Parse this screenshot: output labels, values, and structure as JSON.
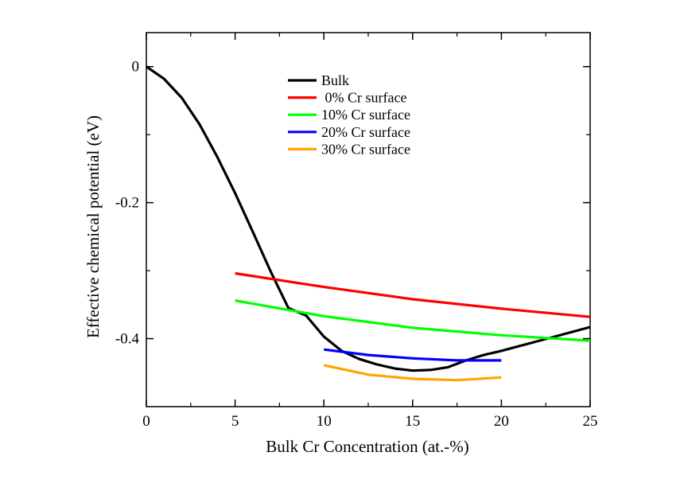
{
  "chart_data": {
    "type": "line",
    "title": "",
    "xlabel": "Bulk Cr Concentration (at.-%)",
    "ylabel": "Effective chemical potential (eV)",
    "xlim": [
      0,
      25
    ],
    "ylim": [
      -0.5,
      0.05
    ],
    "x_ticks": [
      0,
      5,
      10,
      15,
      20,
      25
    ],
    "x_tick_labels": [
      "0",
      "5",
      "10",
      "15",
      "20",
      "25"
    ],
    "y_ticks": [
      0,
      -0.2,
      -0.4
    ],
    "y_tick_labels": [
      "0",
      "-0.2",
      "-0.4"
    ],
    "grid": false,
    "legend_position": "top-center",
    "series": [
      {
        "name": "Bulk",
        "color": "#000000",
        "x": [
          0,
          1,
          2,
          3,
          4,
          5,
          6,
          7,
          8,
          9,
          10,
          11,
          12,
          13,
          14,
          15,
          16,
          17,
          18,
          19,
          20,
          21,
          22,
          23,
          24,
          25
        ],
        "y": [
          0,
          -0.018,
          -0.046,
          -0.085,
          -0.133,
          -0.186,
          -0.243,
          -0.301,
          -0.355,
          -0.366,
          -0.397,
          -0.418,
          -0.43,
          -0.438,
          -0.444,
          -0.447,
          -0.446,
          -0.442,
          -0.432,
          -0.424,
          -0.418,
          -0.411,
          -0.404,
          -0.397,
          -0.39,
          -0.383
        ]
      },
      {
        "name": " 0% Cr surface",
        "color": "#ff0000",
        "x": [
          5,
          10,
          15,
          20,
          25
        ],
        "y": [
          -0.304,
          -0.324,
          -0.342,
          -0.356,
          -0.368
        ]
      },
      {
        "name": "10% Cr surface",
        "color": "#00ff00",
        "x": [
          5,
          10,
          15,
          20,
          25
        ],
        "y": [
          -0.344,
          -0.367,
          -0.384,
          -0.395,
          -0.403
        ]
      },
      {
        "name": "20% Cr surface",
        "color": "#0000ff",
        "x": [
          10,
          12.5,
          15,
          17.5,
          20
        ],
        "y": [
          -0.416,
          -0.424,
          -0.429,
          -0.432,
          -0.432
        ]
      },
      {
        "name": "30% Cr surface",
        "color": "#ffa500",
        "x": [
          10,
          12.5,
          15,
          17.5,
          20
        ],
        "y": [
          -0.439,
          -0.453,
          -0.459,
          -0.461,
          -0.457
        ]
      }
    ]
  }
}
